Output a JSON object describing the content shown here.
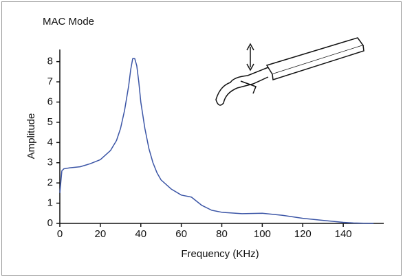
{
  "chart_data": {
    "type": "line",
    "title": "MAC Mode",
    "x_label": "Frequency (KHz)",
    "y_label": "Amplitude",
    "x": [
      0,
      1,
      2,
      5,
      10,
      15,
      20,
      25,
      28,
      30,
      32,
      34,
      35,
      36,
      37,
      38,
      39,
      40,
      42,
      44,
      46,
      48,
      50,
      55,
      60,
      65,
      70,
      75,
      80,
      90,
      100,
      110,
      120,
      130,
      140,
      145,
      150,
      155
    ],
    "series": [
      {
        "name": "Amplitude",
        "color": "#3b55a6",
        "values": [
          1.5,
          2.6,
          2.7,
          2.75,
          2.8,
          2.95,
          3.15,
          3.6,
          4.1,
          4.7,
          5.6,
          6.8,
          7.6,
          8.15,
          8.15,
          7.8,
          7.0,
          6.0,
          4.7,
          3.7,
          3.0,
          2.5,
          2.15,
          1.7,
          1.4,
          1.3,
          0.9,
          0.65,
          0.55,
          0.48,
          0.5,
          0.4,
          0.25,
          0.15,
          0.05,
          0.02,
          0.01,
          0
        ]
      }
    ],
    "xlim": [
      0,
      160
    ],
    "ylim": [
      0,
      8.6
    ],
    "xticks": [
      0,
      20,
      40,
      60,
      80,
      100,
      120,
      140
    ],
    "yticks": [
      0,
      1,
      2,
      3,
      4,
      5,
      6,
      7,
      8
    ]
  }
}
